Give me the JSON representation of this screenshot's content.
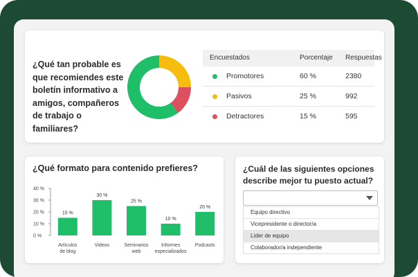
{
  "question1": "¿Qué tan probable es que recomiendes este boletín informativo a amigos, compañeros de trabajo o familiares?",
  "table": {
    "headers": [
      "Encuestados",
      "Porcentaje",
      "Respuestas"
    ],
    "rows": [
      [
        "Promotores",
        "60 %",
        "2380"
      ],
      [
        "Pasivos",
        "25 %",
        "992"
      ],
      [
        "Detractores",
        "15 %",
        "595"
      ]
    ]
  },
  "chart_data": [
    {
      "type": "pie",
      "donut": true,
      "values": [
        60,
        25,
        15
      ],
      "colors": [
        "#1fbf6a",
        "#f7bd0e",
        "#dd5060"
      ]
    },
    {
      "type": "bar",
      "title": "¿Qué formato para contenido prefieres?",
      "categories": [
        "Artículos\nde blog",
        "Videos",
        "Seminarios\nweb",
        "Informes\nespecializados",
        "Podcasts"
      ],
      "values": [
        15,
        30,
        25,
        10,
        20
      ],
      "value_labels": [
        "15 %",
        "30 %",
        "25 %",
        "10 %",
        "20 %"
      ],
      "color": "#1fbf6a",
      "ylim": [
        0,
        40
      ],
      "yticks": [
        {
          "value": 0,
          "label": "0 %"
        },
        {
          "value": 10,
          "label": "10 %"
        },
        {
          "value": 20,
          "label": "20 %"
        },
        {
          "value": 30,
          "label": "30 %"
        },
        {
          "value": 40,
          "label": "40 %"
        }
      ]
    }
  ],
  "question2": "¿Cuál de las siguientes opciones describe mejor tu puesto actual?",
  "options": [
    "Equipo directivo",
    "Vicepresidente o director/a",
    "Líder de equipo",
    "Colaborador/a independiente"
  ],
  "selected": 2
}
